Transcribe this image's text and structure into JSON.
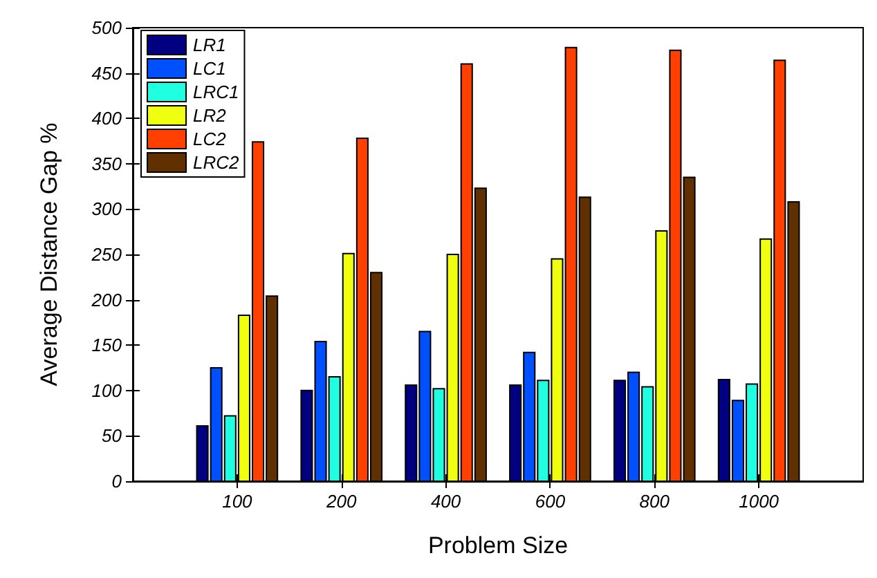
{
  "chart_data": {
    "type": "bar",
    "xlabel": "Problem Size",
    "ylabel": "Average Distance Gap %",
    "categories": [
      "100",
      "200",
      "400",
      "600",
      "800",
      "1000"
    ],
    "series": [
      {
        "name": "LR1",
        "color": "#000080",
        "values": [
          61,
          100,
          106,
          106,
          111,
          112
        ]
      },
      {
        "name": "LC1",
        "color": "#0050ff",
        "values": [
          125,
          154,
          165,
          142,
          120,
          89
        ]
      },
      {
        "name": "LRC1",
        "color": "#20ffe0",
        "values": [
          72,
          115,
          102,
          111,
          104,
          107
        ]
      },
      {
        "name": "LR2",
        "color": "#f0ff10",
        "values": [
          183,
          251,
          250,
          245,
          276,
          267
        ]
      },
      {
        "name": "LC2",
        "color": "#ff4000",
        "values": [
          374,
          378,
          460,
          478,
          475,
          464
        ]
      },
      {
        "name": "LRC2",
        "color": "#603000",
        "values": [
          204,
          230,
          323,
          313,
          335,
          308
        ]
      }
    ],
    "ylim": [
      0,
      500
    ],
    "yticks": [
      0,
      50,
      100,
      150,
      200,
      250,
      300,
      350,
      400,
      450,
      500
    ],
    "grid": false,
    "legend": "top left"
  }
}
